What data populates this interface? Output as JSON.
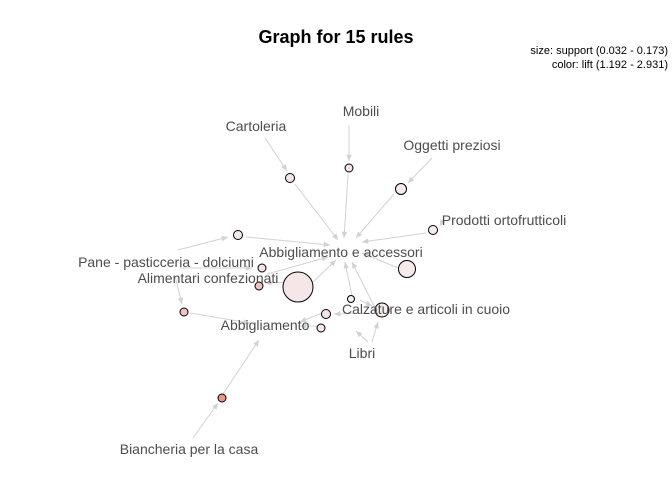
{
  "title": "Graph for 15 rules",
  "legend": {
    "size_text": "size: support (0.032 - 0.173)",
    "color_text": "color: lift (1.192 - 2.931)"
  },
  "colors": {
    "edge": "#d2d2d2",
    "label": "#4d4d4d",
    "low_lift": "#f4e9ea",
    "high_lift": "#e8968f"
  },
  "items": [
    "Cartoleria",
    "Mobili",
    "Oggetti preziosi",
    "Prodotti ortofrutticoli",
    "Abbigliamento e accessori",
    "Pane - pasticceria - dolciumi",
    "Alimentari confezionati",
    "Calzature e articoli in cuoio",
    "Abbigliamento",
    "Libri",
    "Biancheria per la casa"
  ]
}
